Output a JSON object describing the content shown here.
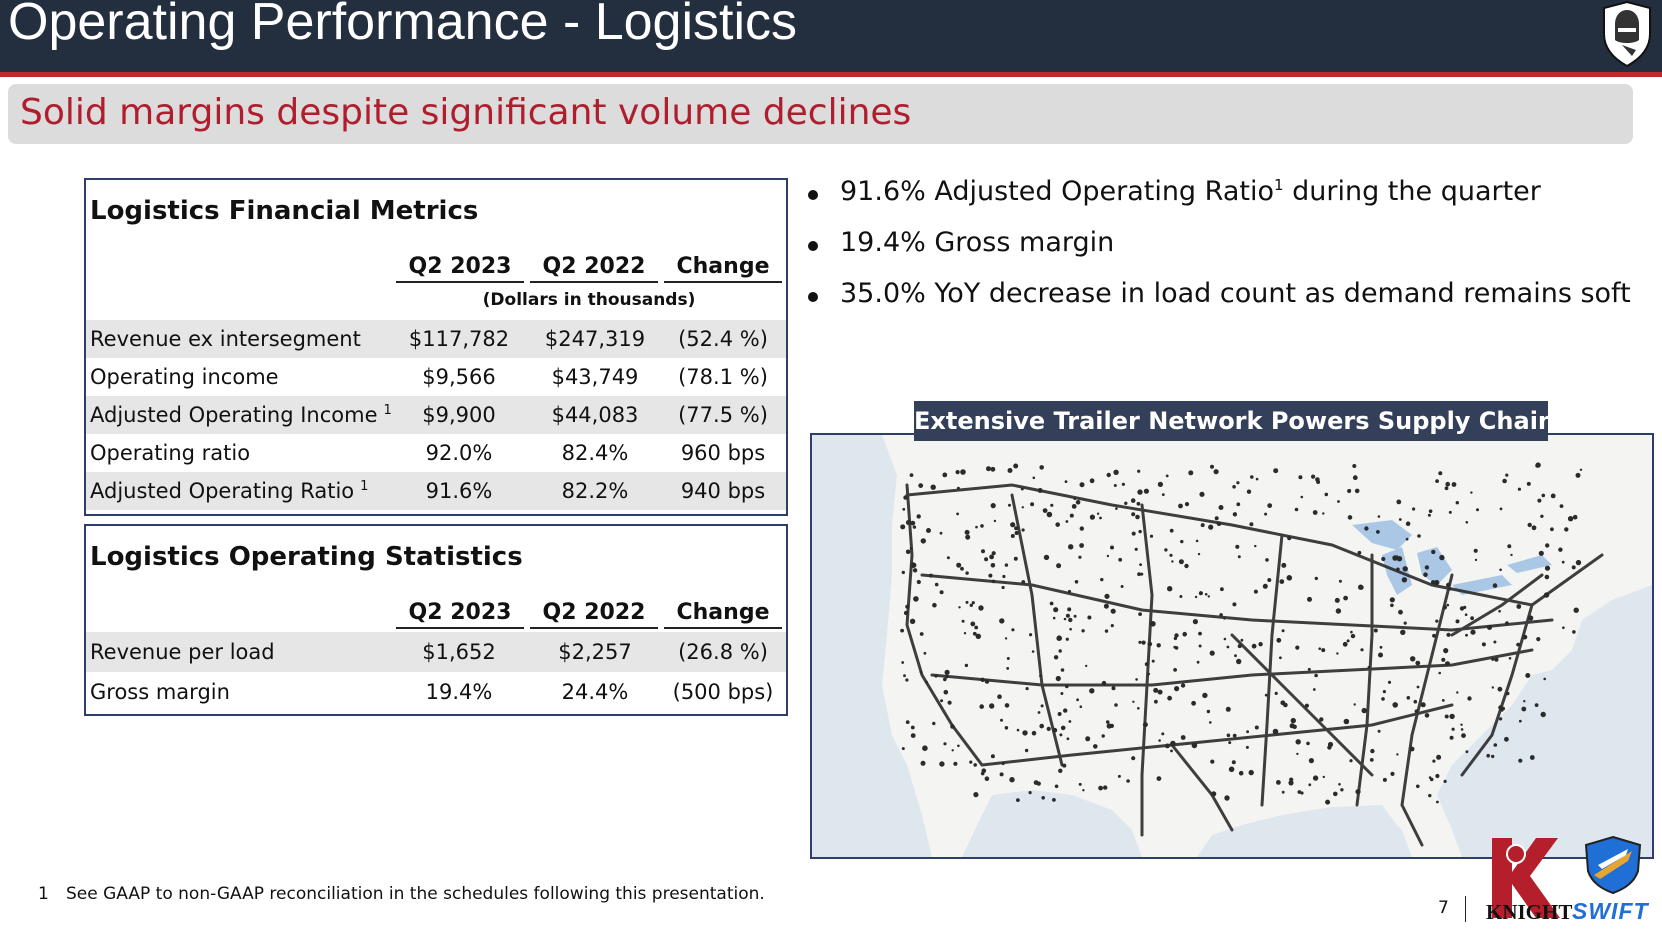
{
  "header": {
    "title": "Operating Performance - Logistics"
  },
  "subtitle": "Solid margins despite significant volume declines",
  "financial_metrics": {
    "title": "Logistics Financial Metrics",
    "columns": [
      "Q2 2023",
      "Q2 2022",
      "Change"
    ],
    "note": "(Dollars in thousands)",
    "rows": [
      {
        "label": "Revenue ex intersegment",
        "sup": "",
        "q2_2023": "$117,782",
        "q2_2022": "$247,319",
        "change": "(52.4 %)"
      },
      {
        "label": "Operating income",
        "sup": "",
        "q2_2023": "$9,566",
        "q2_2022": "$43,749",
        "change": "(78.1 %)"
      },
      {
        "label": "Adjusted Operating Income",
        "sup": "1",
        "q2_2023": "$9,900",
        "q2_2022": "$44,083",
        "change": "(77.5 %)"
      },
      {
        "label": "Operating ratio",
        "sup": "",
        "q2_2023": "92.0%",
        "q2_2022": "82.4%",
        "change": "960 bps"
      },
      {
        "label": "Adjusted Operating Ratio",
        "sup": "1",
        "q2_2023": "91.6%",
        "q2_2022": "82.2%",
        "change": "940 bps"
      }
    ]
  },
  "operating_statistics": {
    "title": "Logistics Operating Statistics",
    "columns": [
      "Q2 2023",
      "Q2 2022",
      "Change"
    ],
    "rows": [
      {
        "label": "Revenue per load",
        "q2_2023": "$1,652",
        "q2_2022": "$2,257",
        "change": "(26.8 %)"
      },
      {
        "label": "Gross margin",
        "q2_2023": "19.4%",
        "q2_2022": "24.4%",
        "change": "(500 bps)"
      }
    ]
  },
  "bullets": [
    {
      "pre": "91.6% Adjusted Operating Ratio",
      "sup": "1",
      "post": " during the quarter"
    },
    {
      "pre": "19.4% Gross margin",
      "sup": "",
      "post": ""
    },
    {
      "pre": "35.0% YoY decrease in load count as demand remains soft",
      "sup": "",
      "post": ""
    }
  ],
  "map": {
    "title": "Extensive Trailer Network Powers Supply Chains"
  },
  "footnote": {
    "number": "1",
    "text": "See GAAP to non-GAAP reconciliation in the schedules following this presentation."
  },
  "page_number": "7",
  "logos": {
    "knight": "KNIGHT",
    "swift": "SWIFT"
  },
  "colors": {
    "header_bg": "#232f3e",
    "accent_red": "#c0272d",
    "subtitle_text": "#b01e2e",
    "panel_border": "#2d3e6b",
    "map_title_bg": "#34405a"
  }
}
